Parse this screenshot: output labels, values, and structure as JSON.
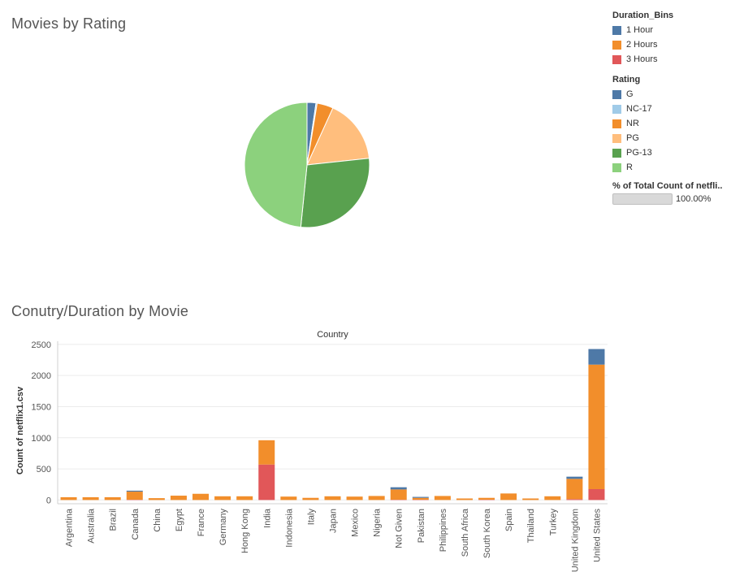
{
  "pie_title": "Movies by Rating",
  "bar_title": "Conutry/Duration by Movie",
  "legend_duration": {
    "title": "Duration_Bins",
    "items": [
      {
        "label": "1 Hour",
        "color": "#4e79a7"
      },
      {
        "label": "2 Hours",
        "color": "#f28e2b"
      },
      {
        "label": "3 Hours",
        "color": "#e15759"
      }
    ]
  },
  "legend_rating": {
    "title": "Rating",
    "items": [
      {
        "label": "G",
        "color": "#4e79a7"
      },
      {
        "label": "NC-17",
        "color": "#a0cbe8"
      },
      {
        "label": "NR",
        "color": "#f28e2b"
      },
      {
        "label": "PG",
        "color": "#ffbe7d"
      },
      {
        "label": "PG-13",
        "color": "#59a14f"
      },
      {
        "label": "R",
        "color": "#8cd17d"
      }
    ]
  },
  "legend_pct": {
    "title": "% of Total Count of netfli..",
    "value_label": "100.00%",
    "fill_fraction": 1.0
  },
  "chart_data": [
    {
      "type": "pie",
      "title": "Movies by Rating",
      "slices": [
        {
          "label": "G",
          "value": 2.3,
          "color": "#4e79a7"
        },
        {
          "label": "NC-17",
          "value": 0.3,
          "color": "#a0cbe8"
        },
        {
          "label": "NR",
          "value": 4.2,
          "color": "#f28e2b"
        },
        {
          "label": "PG",
          "value": 16.5,
          "color": "#ffbe7d"
        },
        {
          "label": "PG-13",
          "value": 28.3,
          "color": "#59a14f"
        },
        {
          "label": "R",
          "value": 48.4,
          "color": "#8cd17d"
        }
      ]
    },
    {
      "type": "bar",
      "stacked": true,
      "title": "Conutry/Duration by Movie",
      "header": "Country",
      "ylabel": "Count of netflix1.csv",
      "ylim": [
        -60,
        2550
      ],
      "yticks": [
        0,
        500,
        1000,
        1500,
        2000,
        2500
      ],
      "categories": [
        "Argentina",
        "Australia",
        "Brazil",
        "Canada",
        "China",
        "Egypt",
        "France",
        "Germany",
        "Hong Kong",
        "India",
        "Indonesia",
        "Italy",
        "Japan",
        "Mexico",
        "Nigeria",
        "Not Given",
        "Pakistan",
        "Philippines",
        "South Africa",
        "South Korea",
        "Spain",
        "Thailand",
        "Turkey",
        "United Kingdom",
        "United States"
      ],
      "series": [
        {
          "name": "3 Hours",
          "color": "#e15759",
          "values": [
            0,
            0,
            0,
            5,
            0,
            0,
            0,
            0,
            0,
            570,
            0,
            0,
            0,
            0,
            0,
            5,
            5,
            0,
            0,
            5,
            0,
            0,
            0,
            15,
            175
          ]
        },
        {
          "name": "2 Hours",
          "color": "#f28e2b",
          "values": [
            45,
            45,
            45,
            130,
            30,
            70,
            100,
            60,
            60,
            390,
            55,
            35,
            60,
            55,
            65,
            165,
            30,
            65,
            25,
            30,
            105,
            25,
            60,
            325,
            2000
          ]
        },
        {
          "name": "1 Hour",
          "color": "#4e79a7",
          "values": [
            0,
            0,
            0,
            15,
            0,
            0,
            0,
            0,
            0,
            0,
            0,
            0,
            0,
            0,
            0,
            35,
            15,
            0,
            0,
            0,
            0,
            0,
            0,
            35,
            250
          ]
        }
      ]
    }
  ]
}
